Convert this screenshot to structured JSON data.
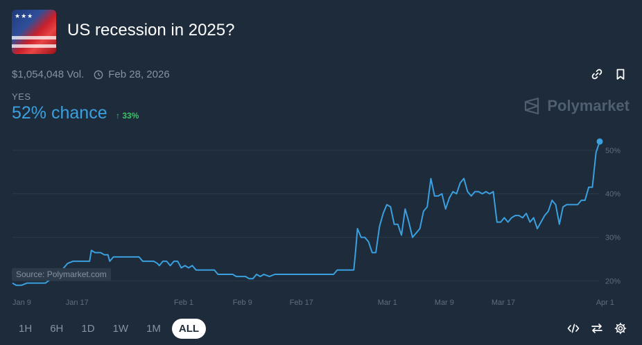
{
  "header": {
    "title": "US recession in 2025?",
    "volume": "$1,054,048 Vol.",
    "end_date": "Feb 28, 2026"
  },
  "outcome": {
    "label": "YES",
    "chance": "52% chance",
    "change": "33%"
  },
  "brand": "Polymarket",
  "source_label": "Source: Polymarket.com",
  "ranges": [
    "1H",
    "6H",
    "1D",
    "1W",
    "1M",
    "ALL"
  ],
  "active_range": "ALL",
  "colors": {
    "line": "#3aa0e0",
    "background": "#1d2b3a",
    "positive": "#3cc368"
  },
  "chart_data": {
    "type": "line",
    "series": [
      {
        "values": [
          [
            0,
            19.5
          ],
          [
            2,
            19
          ],
          [
            5,
            19
          ],
          [
            8,
            19.5
          ],
          [
            12,
            19.5
          ],
          [
            18,
            19.5
          ],
          [
            21,
            20.5
          ],
          [
            24,
            22
          ],
          [
            27,
            22.5
          ],
          [
            30,
            24
          ],
          [
            33,
            24.5
          ],
          [
            37,
            24.5
          ],
          [
            40,
            24.5
          ],
          [
            42,
            24.5
          ],
          [
            43,
            27
          ],
          [
            45,
            26.5
          ],
          [
            48,
            26.5
          ],
          [
            50,
            26
          ],
          [
            52,
            26
          ],
          [
            53,
            24.5
          ],
          [
            55,
            25.5
          ],
          [
            58,
            25.5
          ],
          [
            62,
            25.5
          ],
          [
            66,
            25.5
          ],
          [
            69,
            25.5
          ],
          [
            71,
            24.5
          ],
          [
            74,
            24.5
          ],
          [
            77,
            24.5
          ],
          [
            79,
            24
          ],
          [
            80,
            23.5
          ],
          [
            82,
            24.5
          ],
          [
            84,
            24.5
          ],
          [
            86,
            23.5
          ],
          [
            88,
            24.5
          ],
          [
            90,
            24.5
          ],
          [
            92,
            23
          ],
          [
            94,
            23.5
          ],
          [
            96,
            23
          ],
          [
            98,
            23.5
          ],
          [
            100,
            22.5
          ],
          [
            103,
            22.5
          ],
          [
            106,
            22.5
          ],
          [
            110,
            22.5
          ],
          [
            112,
            21.5
          ],
          [
            116,
            21.5
          ],
          [
            120,
            21.5
          ],
          [
            122,
            21
          ],
          [
            125,
            21
          ],
          [
            127,
            21
          ],
          [
            129,
            20.5
          ],
          [
            131,
            20.5
          ],
          [
            133,
            21.5
          ],
          [
            135,
            21
          ],
          [
            137,
            21.5
          ],
          [
            140,
            21
          ],
          [
            143,
            21.5
          ],
          [
            150,
            21.5
          ],
          [
            160,
            21.5
          ],
          [
            170,
            21.5
          ],
          [
            175,
            21.5
          ],
          [
            177,
            22.5
          ],
          [
            181,
            22.5
          ],
          [
            186,
            22.5
          ],
          [
            187,
            27
          ],
          [
            188,
            32
          ],
          [
            190,
            30
          ],
          [
            192,
            30
          ],
          [
            194,
            29
          ],
          [
            196,
            26.5
          ],
          [
            198,
            26.5
          ],
          [
            200,
            32.5
          ],
          [
            202,
            35.5
          ],
          [
            204,
            37.5
          ],
          [
            206,
            37
          ],
          [
            208,
            33
          ],
          [
            210,
            33
          ],
          [
            212,
            30.5
          ],
          [
            214,
            36.5
          ],
          [
            216,
            33.5
          ],
          [
            218,
            30
          ],
          [
            220,
            31
          ],
          [
            222,
            32
          ],
          [
            224,
            36
          ],
          [
            226,
            37
          ],
          [
            228,
            43.5
          ],
          [
            230,
            39.5
          ],
          [
            232,
            39.5
          ],
          [
            234,
            40
          ],
          [
            236,
            36.5
          ],
          [
            238,
            39
          ],
          [
            240,
            40.5
          ],
          [
            242,
            40
          ],
          [
            244,
            42.5
          ],
          [
            246,
            43.5
          ],
          [
            248,
            40.5
          ],
          [
            250,
            39.5
          ],
          [
            252,
            40.5
          ],
          [
            254,
            40.5
          ],
          [
            256,
            40
          ],
          [
            258,
            40.5
          ],
          [
            260,
            40
          ],
          [
            262,
            40.5
          ],
          [
            264,
            33.5
          ],
          [
            266,
            33.5
          ],
          [
            268,
            34.5
          ],
          [
            270,
            33.5
          ],
          [
            272,
            34.5
          ],
          [
            274,
            35
          ],
          [
            276,
            35
          ],
          [
            278,
            34.5
          ],
          [
            280,
            35.5
          ],
          [
            282,
            33.5
          ],
          [
            284,
            34.5
          ],
          [
            286,
            32
          ],
          [
            288,
            33.5
          ],
          [
            290,
            35
          ],
          [
            292,
            36
          ],
          [
            294,
            38.5
          ],
          [
            296,
            37.5
          ],
          [
            298,
            33
          ],
          [
            300,
            37
          ],
          [
            302,
            37.5
          ],
          [
            304,
            37.5
          ],
          [
            306,
            37.5
          ],
          [
            308,
            37.5
          ],
          [
            310,
            38.5
          ],
          [
            312,
            38.5
          ],
          [
            314,
            41.5
          ],
          [
            316,
            41.5
          ],
          [
            318,
            49.5
          ],
          [
            320,
            52
          ]
        ]
      }
    ],
    "x_ticks": [
      {
        "x": 0,
        "label": "Jan 9"
      },
      {
        "x": 29,
        "label": "Jan 17"
      },
      {
        "x": 88,
        "label": "Feb 1"
      },
      {
        "x": 120,
        "label": "Feb 9"
      },
      {
        "x": 151,
        "label": "Feb 17"
      },
      {
        "x": 199,
        "label": "Mar 1"
      },
      {
        "x": 230,
        "label": "Mar 9"
      },
      {
        "x": 261,
        "label": "Mar 17"
      },
      {
        "x": 318,
        "label": "Apr 1"
      }
    ],
    "y_ticks": [
      20,
      30,
      40,
      50
    ],
    "y_tick_labels": [
      "20%",
      "30%",
      "40%",
      "50%"
    ],
    "ylim": [
      18,
      53
    ],
    "xlim": [
      0,
      320
    ],
    "grid": true
  }
}
